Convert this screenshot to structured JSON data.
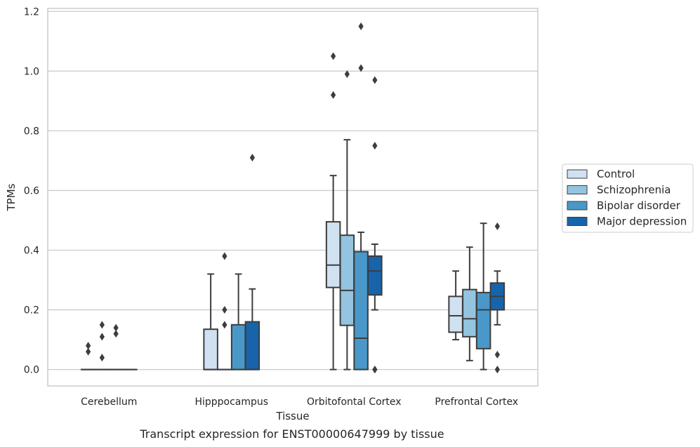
{
  "chart_data": {
    "type": "box",
    "title": "",
    "caption": "Transcript expression for ENST00000647999 by tissue",
    "xlabel": "Tissue",
    "ylabel": "TPMs",
    "ylim": [
      -0.055,
      1.21
    ],
    "yticks": [
      0.0,
      0.2,
      0.4,
      0.6,
      0.8,
      1.0,
      1.2
    ],
    "ytick_labels": [
      "0.0",
      "0.2",
      "0.4",
      "0.6",
      "0.8",
      "1.0",
      "1.2"
    ],
    "grid": true,
    "legend_position": "right",
    "categories": [
      "Cerebellum",
      "Hipppocampus",
      "Orbitofontal Cortex",
      "Prefrontal Cortex"
    ],
    "colors": [
      "#d0e1f2",
      "#94c4df",
      "#4a98c9",
      "#1764ab"
    ],
    "series": [
      {
        "name": "Control",
        "boxes": [
          {
            "whislo": 0.0,
            "q1": 0.0,
            "med": 0.0,
            "q3": 0.0,
            "whishi": 0.0,
            "fliers": [
              0.08,
              0.06
            ]
          },
          {
            "whislo": 0.0,
            "q1": 0.0,
            "med": 0.0,
            "q3": 0.135,
            "whishi": 0.32,
            "fliers": []
          },
          {
            "whislo": 0.0,
            "q1": 0.275,
            "med": 0.35,
            "q3": 0.495,
            "whishi": 0.65,
            "fliers": [
              1.05,
              0.92
            ]
          },
          {
            "whislo": 0.1,
            "q1": 0.125,
            "med": 0.18,
            "q3": 0.245,
            "whishi": 0.33,
            "fliers": []
          }
        ]
      },
      {
        "name": "Schizophrenia",
        "boxes": [
          {
            "whislo": 0.0,
            "q1": 0.0,
            "med": 0.0,
            "q3": 0.0,
            "whishi": 0.0,
            "fliers": [
              0.15,
              0.11,
              0.04
            ]
          },
          {
            "whislo": 0.0,
            "q1": 0.0,
            "med": 0.0,
            "q3": 0.0,
            "whishi": 0.0,
            "fliers": [
              0.38,
              0.2,
              0.15
            ]
          },
          {
            "whislo": 0.0,
            "q1": 0.148,
            "med": 0.265,
            "q3": 0.45,
            "whishi": 0.77,
            "fliers": [
              0.99
            ]
          },
          {
            "whislo": 0.03,
            "q1": 0.11,
            "med": 0.17,
            "q3": 0.268,
            "whishi": 0.41,
            "fliers": []
          }
        ]
      },
      {
        "name": "Bipolar disorder",
        "boxes": [
          {
            "whislo": 0.0,
            "q1": 0.0,
            "med": 0.0,
            "q3": 0.0,
            "whishi": 0.0,
            "fliers": [
              0.14,
              0.12
            ]
          },
          {
            "whislo": 0.0,
            "q1": 0.0,
            "med": 0.0,
            "q3": 0.15,
            "whishi": 0.32,
            "fliers": []
          },
          {
            "whislo": 0.0,
            "q1": 0.0,
            "med": 0.105,
            "q3": 0.395,
            "whishi": 0.46,
            "fliers": [
              1.15,
              1.01
            ]
          },
          {
            "whislo": 0.0,
            "q1": 0.07,
            "med": 0.2,
            "q3": 0.258,
            "whishi": 0.49,
            "fliers": []
          }
        ]
      },
      {
        "name": "Major depression",
        "boxes": [
          {
            "whislo": 0.0,
            "q1": 0.0,
            "med": 0.0,
            "q3": 0.0,
            "whishi": 0.0,
            "fliers": []
          },
          {
            "whislo": 0.0,
            "q1": 0.0,
            "med": 0.0,
            "q3": 0.16,
            "whishi": 0.27,
            "fliers": [
              0.71
            ]
          },
          {
            "whislo": 0.2,
            "q1": 0.25,
            "med": 0.33,
            "q3": 0.38,
            "whishi": 0.42,
            "fliers": [
              0.97,
              0.75,
              0.0,
              0.0
            ]
          },
          {
            "whislo": 0.15,
            "q1": 0.2,
            "med": 0.245,
            "q3": 0.29,
            "whishi": 0.33,
            "fliers": [
              0.48,
              0.05,
              0.0
            ]
          }
        ]
      }
    ]
  }
}
